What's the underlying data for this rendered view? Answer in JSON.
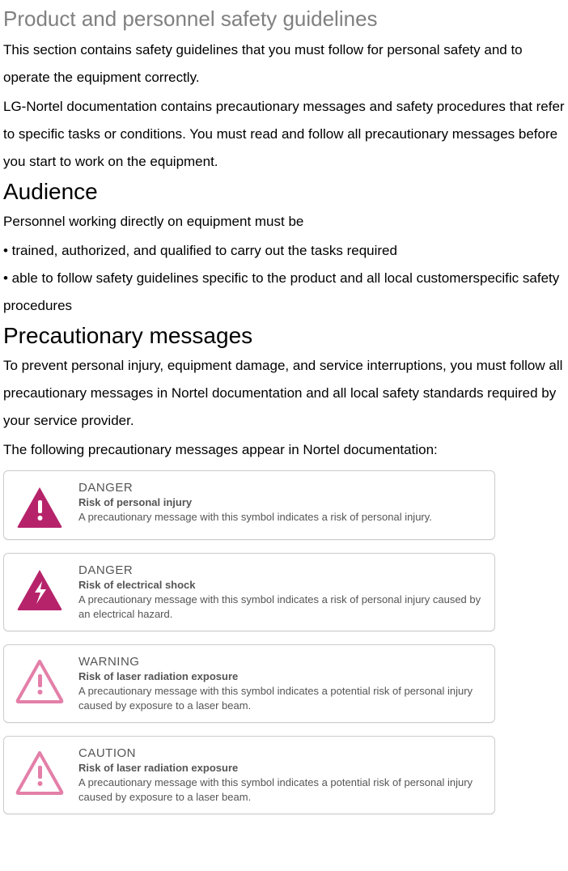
{
  "heading1": "Product and personnel safety guidelines",
  "para1": "This section contains safety guidelines that you must follow for personal safety and to operate the equipment correctly.",
  "para2": "LG-Nortel documentation contains precautionary messages and safety procedures that refer to specific tasks or conditions. You must read and follow all precautionary messages before you start to work on the equipment.",
  "heading2": "Audience",
  "para3": "Personnel working directly on equipment must be",
  "bullet1": "• trained, authorized, and qualified to carry out the tasks required",
  "bullet2": "• able to follow safety guidelines specific to the product and all local customerspecific safety procedures",
  "heading3": "Precautionary messages",
  "para4": "To prevent personal injury, equipment damage, and service interruptions, you must follow all precautionary messages in Nortel documentation and all local safety standards required by your service provider.",
  "para5": "The following precautionary messages appear in Nortel documentation:",
  "messages": [
    {
      "title": "DANGER",
      "subtitle": "Risk of personal injury",
      "desc": "A precautionary message with this symbol indicates a risk of personal injury.",
      "icon_type": "exclaim",
      "icon_stroke": "#b6236b",
      "icon_fill": "#b6236b",
      "symbol_color": "#ffffff"
    },
    {
      "title": "DANGER",
      "subtitle": "Risk of  electrical shock",
      "desc": "A precautionary message with this symbol indicates a risk of personal injury caused by an electrical hazard.",
      "icon_type": "bolt",
      "icon_stroke": "#b6236b",
      "icon_fill": "#b6236b",
      "symbol_color": "#ffffff"
    },
    {
      "title": "WARNING",
      "subtitle": "Risk of  laser radiation exposure",
      "desc": "A precautionary message with this symbol indicates a potential risk of personal injury caused by exposure to a laser beam.",
      "icon_type": "exclaim-outline",
      "icon_stroke": "#e37fa8",
      "icon_fill": "none",
      "symbol_color": "#e37fa8"
    },
    {
      "title": "CAUTION",
      "subtitle": "Risk of  laser radiation exposure",
      "desc": "A precautionary message with this symbol indicates a potential risk of personal injury caused by exposure to a laser beam.",
      "icon_type": "exclaim-outline",
      "icon_stroke": "#e37fa8",
      "icon_fill": "none",
      "symbol_color": "#e37fa8"
    }
  ],
  "colors": {
    "heading1": "#808080",
    "text": "#000000",
    "box_text": "#555555",
    "border": "#cccccc",
    "background": "#ffffff"
  }
}
